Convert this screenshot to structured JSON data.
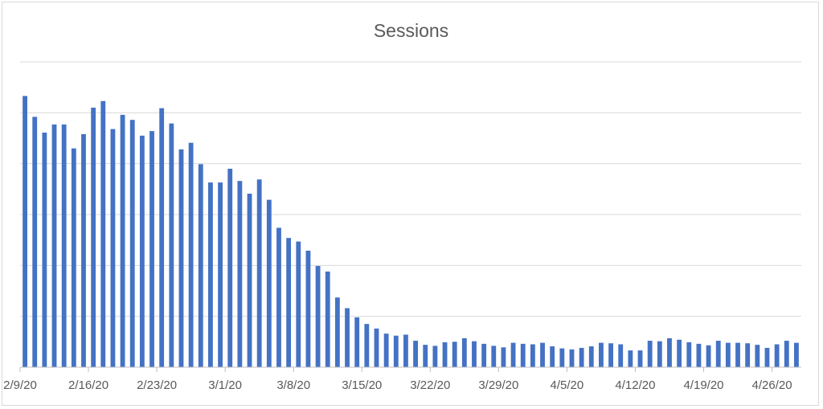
{
  "chart_data": {
    "type": "bar",
    "title": "Sessions",
    "xlabel": "",
    "ylabel": "",
    "ylim": [
      0,
      6000
    ],
    "yticks": [
      0,
      1000,
      2000,
      3000,
      4000,
      5000,
      6000
    ],
    "y_tick_labels_visible": false,
    "grid": true,
    "legend": "none",
    "color": "#4472c4",
    "x_tick_labels": [
      "2/9/20",
      "2/16/20",
      "2/23/20",
      "3/1/20",
      "3/8/20",
      "3/15/20",
      "3/22/20",
      "3/29/20",
      "4/5/20",
      "4/12/20",
      "4/19/20",
      "4/26/20"
    ],
    "x_tick_every": 7,
    "series": [
      {
        "values": [
          5330,
          4920,
          4610,
          4770,
          4770,
          4300,
          4580,
          5100,
          5230,
          4680,
          4960,
          4860,
          4550,
          4640,
          5090,
          4790,
          4280,
          4410,
          3990,
          3630,
          3630,
          3900,
          3660,
          3410,
          3690,
          3290,
          2740,
          2540,
          2470,
          2290,
          1990,
          1880,
          1370,
          1160,
          980,
          850,
          760,
          660,
          620,
          640,
          520,
          440,
          420,
          490,
          500,
          570,
          510,
          460,
          420,
          390,
          480,
          460,
          450,
          480,
          410,
          370,
          350,
          380,
          410,
          480,
          470,
          450,
          330,
          330,
          520,
          510,
          570,
          540,
          490,
          460,
          430,
          520,
          480,
          480,
          470,
          440,
          380,
          450,
          520,
          480
        ]
      }
    ]
  }
}
